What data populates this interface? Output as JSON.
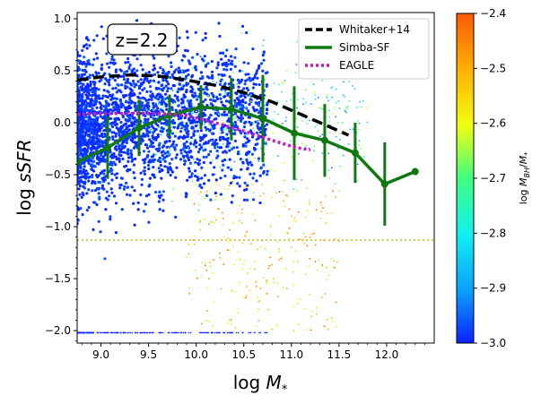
{
  "chart_data": {
    "type": "scatter",
    "annotation": "z=2.2",
    "xlabel_main": "log ",
    "xlabel_sym": "M",
    "xlabel_sub": "*",
    "ylabel_main": "log ",
    "ylabel_sym": "sSFR",
    "xlim": [
      8.75,
      12.5
    ],
    "ylim": [
      -2.12,
      1.06
    ],
    "xticks": [
      {
        "v": 9.0,
        "label": "9.0"
      },
      {
        "v": 9.5,
        "label": "9.5"
      },
      {
        "v": 10.0,
        "label": "10.0"
      },
      {
        "v": 10.5,
        "label": "10.5"
      },
      {
        "v": 11.0,
        "label": "11.0"
      },
      {
        "v": 11.5,
        "label": "11.5"
      },
      {
        "v": 12.0,
        "label": "12.0"
      }
    ],
    "yticks": [
      {
        "v": 1.0,
        "label": "1.0"
      },
      {
        "v": 0.5,
        "label": "0.5"
      },
      {
        "v": 0.0,
        "label": "0.0"
      },
      {
        "v": -0.5,
        "label": "−0.5"
      },
      {
        "v": -1.0,
        "label": "−1.0"
      },
      {
        "v": -1.5,
        "label": "−1.5"
      },
      {
        "v": -2.0,
        "label": "−2.0"
      }
    ],
    "threshold_line": {
      "y": -1.13,
      "color": "#bdbd1a"
    },
    "legend": [
      {
        "name": "Whitaker+14",
        "color": "#000000",
        "style": "dashed"
      },
      {
        "name": "Simba-SF",
        "color": "#107810",
        "style": "solid"
      },
      {
        "name": "EAGLE",
        "color": "#c41ac4",
        "style": "dotted"
      }
    ],
    "series": [
      {
        "name": "Whitaker+14",
        "x": [
          8.75,
          9.0,
          9.3,
          9.6,
          9.9,
          10.2,
          10.5,
          10.8,
          11.1,
          11.4,
          11.6
        ],
        "y": [
          0.41,
          0.44,
          0.46,
          0.45,
          0.41,
          0.36,
          0.29,
          0.2,
          0.08,
          -0.04,
          -0.12
        ]
      },
      {
        "name": "Simba-SF",
        "x": [
          8.75,
          9.07,
          9.4,
          9.72,
          10.05,
          10.37,
          10.7,
          11.03,
          11.35,
          11.67,
          11.98,
          12.3
        ],
        "y": [
          -0.38,
          -0.24,
          -0.05,
          0.07,
          0.15,
          0.13,
          0.04,
          -0.1,
          -0.17,
          -0.29,
          -0.59,
          -0.47
        ],
        "yerr": [
          0.0,
          0.3,
          0.27,
          0.2,
          0.21,
          0.3,
          0.42,
          0.45,
          0.35,
          0.29,
          0.4,
          0.0
        ]
      },
      {
        "name": "EAGLE",
        "x": [
          8.75,
          9.0,
          9.3,
          9.6,
          9.9,
          10.2,
          10.5,
          10.8,
          11.05,
          11.2
        ],
        "y": [
          0.08,
          0.09,
          0.09,
          0.09,
          0.07,
          0.0,
          -0.08,
          -0.17,
          -0.24,
          -0.26
        ]
      }
    ],
    "colorbar": {
      "label_main": "log ",
      "label_sym": "M",
      "label_sub": "BH",
      "label_slash": "/",
      "label_sym2": "M",
      "label_sub2": "*",
      "vmin": -3.0,
      "vmax": -2.4,
      "ticks": [
        {
          "v": -2.4,
          "label": "−2.4"
        },
        {
          "v": -2.5,
          "label": "−2.5"
        },
        {
          "v": -2.6,
          "label": "−2.6"
        },
        {
          "v": -2.7,
          "label": "−2.7"
        },
        {
          "v": -2.8,
          "label": "−2.8"
        },
        {
          "v": -2.9,
          "label": "−2.9"
        },
        {
          "v": -3.0,
          "label": "−3.0"
        }
      ],
      "colormap": [
        "#0a22ff",
        "#0aa0ff",
        "#10f0f0",
        "#40ff80",
        "#f0ff10",
        "#ffb000",
        "#ff5a00"
      ]
    },
    "scatter_points_note": "Dense blue cloud (log MBH/M* ≈ -3.0) at low mass; quenched galaxies (orange, ≈ -2.45) scattered at log M* 10–11.7, log sSFR -0.5 to -2.0; floor of points at log sSFR = -2.02."
  }
}
